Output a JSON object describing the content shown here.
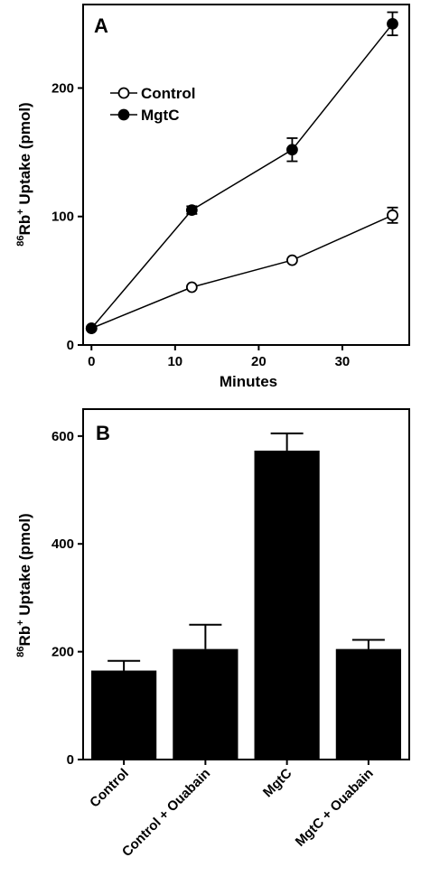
{
  "chart_data": [
    {
      "type": "line",
      "panel_label": "A",
      "xlabel": "Minutes",
      "ylabel": "86Rb+ Uptake (pmol)",
      "ylabel_parts": {
        "sup1": "86",
        "base": "Rb",
        "sup2": "+",
        "rest": " Uptake (pmol)"
      },
      "xlim": [
        -1,
        38
      ],
      "ylim": [
        0,
        265
      ],
      "xticks": [
        0,
        10,
        20,
        30
      ],
      "yticks": [
        0,
        100,
        200
      ],
      "grid": false,
      "legend_position": "upper-left",
      "series": [
        {
          "name": "Control",
          "marker": "open-circle",
          "x": [
            0,
            12,
            24,
            36
          ],
          "y": [
            13,
            45,
            66,
            101
          ],
          "err": [
            0,
            0,
            0,
            6
          ]
        },
        {
          "name": "MgtC",
          "marker": "filled-circle",
          "x": [
            0,
            12,
            24,
            36
          ],
          "y": [
            13,
            105,
            152,
            250
          ],
          "err": [
            0,
            3,
            9,
            9
          ]
        }
      ]
    },
    {
      "type": "bar",
      "panel_label": "B",
      "xlabel": "",
      "ylabel": "86Rb+ Uptake (pmol)",
      "ylabel_parts": {
        "sup1": "86",
        "base": "Rb",
        "sup2": "+",
        "rest": " Uptake (pmol)"
      },
      "ylim": [
        0,
        650
      ],
      "yticks": [
        0,
        200,
        400,
        600
      ],
      "grid": false,
      "categories": [
        "Control",
        "Control + Ouabain",
        "MgtC",
        "MgtC + Ouabain"
      ],
      "values": [
        165,
        205,
        573,
        205
      ],
      "err": [
        18,
        45,
        32,
        17
      ],
      "bar_color": "#000000"
    }
  ]
}
